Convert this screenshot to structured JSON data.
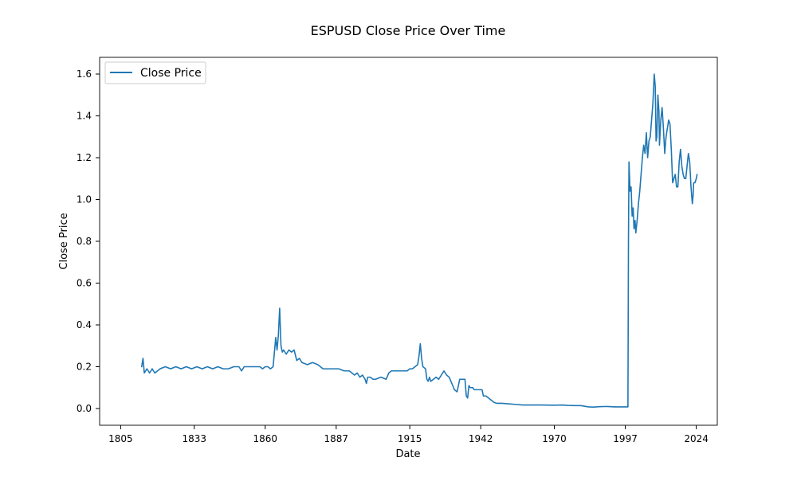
{
  "chart_data": {
    "type": "line",
    "title": "ESPUSD Close Price Over Time",
    "xlabel": "Date",
    "ylabel": "Close Price",
    "xlim": [
      1797,
      2032
    ],
    "ylim": [
      -0.08,
      1.68
    ],
    "x_ticks": [
      {
        "value": 1805,
        "label": "1805"
      },
      {
        "value": 1833,
        "label": "1833"
      },
      {
        "value": 1860,
        "label": "1860"
      },
      {
        "value": 1887,
        "label": "1887"
      },
      {
        "value": 1915,
        "label": "1915"
      },
      {
        "value": 1942,
        "label": "1942"
      },
      {
        "value": 1970,
        "label": "1970"
      },
      {
        "value": 1997,
        "label": "1997"
      },
      {
        "value": 2024,
        "label": "2024"
      }
    ],
    "y_ticks": [
      {
        "value": 0.0,
        "label": "0.0"
      },
      {
        "value": 0.2,
        "label": "0.2"
      },
      {
        "value": 0.4,
        "label": "0.4"
      },
      {
        "value": 0.6,
        "label": "0.6"
      },
      {
        "value": 0.8,
        "label": "0.8"
      },
      {
        "value": 1.0,
        "label": "1.0"
      },
      {
        "value": 1.2,
        "label": "1.2"
      },
      {
        "value": 1.4,
        "label": "1.4"
      },
      {
        "value": 1.6,
        "label": "1.6"
      }
    ],
    "grid": false,
    "legend_position": "upper-left",
    "series": [
      {
        "name": "Close Price",
        "color": "#1f77b4",
        "points": [
          [
            1813,
            0.2
          ],
          [
            1813.5,
            0.24
          ],
          [
            1814,
            0.17
          ],
          [
            1815,
            0.19
          ],
          [
            1816,
            0.17
          ],
          [
            1817,
            0.19
          ],
          [
            1818,
            0.17
          ],
          [
            1820,
            0.19
          ],
          [
            1822,
            0.2
          ],
          [
            1824,
            0.19
          ],
          [
            1826,
            0.2
          ],
          [
            1828,
            0.19
          ],
          [
            1830,
            0.2
          ],
          [
            1832,
            0.19
          ],
          [
            1834,
            0.2
          ],
          [
            1836,
            0.19
          ],
          [
            1838,
            0.2
          ],
          [
            1840,
            0.19
          ],
          [
            1842,
            0.2
          ],
          [
            1844,
            0.19
          ],
          [
            1846,
            0.19
          ],
          [
            1848,
            0.2
          ],
          [
            1850,
            0.2
          ],
          [
            1851,
            0.18
          ],
          [
            1852,
            0.2
          ],
          [
            1854,
            0.2
          ],
          [
            1856,
            0.2
          ],
          [
            1858,
            0.2
          ],
          [
            1859,
            0.19
          ],
          [
            1860,
            0.2
          ],
          [
            1861,
            0.2
          ],
          [
            1862,
            0.19
          ],
          [
            1863,
            0.2
          ],
          [
            1864,
            0.34
          ],
          [
            1864.5,
            0.28
          ],
          [
            1865,
            0.35
          ],
          [
            1865.5,
            0.48
          ],
          [
            1866,
            0.3
          ],
          [
            1866.5,
            0.27
          ],
          [
            1867,
            0.28
          ],
          [
            1868,
            0.26
          ],
          [
            1869,
            0.28
          ],
          [
            1870,
            0.27
          ],
          [
            1871,
            0.28
          ],
          [
            1872,
            0.23
          ],
          [
            1873,
            0.24
          ],
          [
            1874,
            0.22
          ],
          [
            1876,
            0.21
          ],
          [
            1878,
            0.22
          ],
          [
            1880,
            0.21
          ],
          [
            1882,
            0.19
          ],
          [
            1885,
            0.19
          ],
          [
            1888,
            0.19
          ],
          [
            1890,
            0.18
          ],
          [
            1892,
            0.18
          ],
          [
            1893,
            0.17
          ],
          [
            1894,
            0.16
          ],
          [
            1895,
            0.17
          ],
          [
            1896,
            0.15
          ],
          [
            1897,
            0.16
          ],
          [
            1898,
            0.14
          ],
          [
            1898.5,
            0.12
          ],
          [
            1899,
            0.15
          ],
          [
            1900,
            0.15
          ],
          [
            1901,
            0.14
          ],
          [
            1902,
            0.14
          ],
          [
            1904,
            0.15
          ],
          [
            1906,
            0.14
          ],
          [
            1907,
            0.17
          ],
          [
            1908,
            0.18
          ],
          [
            1910,
            0.18
          ],
          [
            1912,
            0.18
          ],
          [
            1914,
            0.18
          ],
          [
            1915,
            0.19
          ],
          [
            1916,
            0.19
          ],
          [
            1917,
            0.2
          ],
          [
            1918,
            0.21
          ],
          [
            1918.5,
            0.25
          ],
          [
            1919,
            0.31
          ],
          [
            1919.5,
            0.24
          ],
          [
            1920,
            0.2
          ],
          [
            1921,
            0.19
          ],
          [
            1921.5,
            0.14
          ],
          [
            1922,
            0.13
          ],
          [
            1922.5,
            0.15
          ],
          [
            1923,
            0.13
          ],
          [
            1924,
            0.14
          ],
          [
            1925,
            0.15
          ],
          [
            1926,
            0.14
          ],
          [
            1927,
            0.16
          ],
          [
            1928,
            0.18
          ],
          [
            1929,
            0.16
          ],
          [
            1930,
            0.15
          ],
          [
            1931,
            0.12
          ],
          [
            1932,
            0.09
          ],
          [
            1933,
            0.08
          ],
          [
            1933.5,
            0.11
          ],
          [
            1934,
            0.14
          ],
          [
            1935,
            0.14
          ],
          [
            1936,
            0.14
          ],
          [
            1936.5,
            0.06
          ],
          [
            1937,
            0.05
          ],
          [
            1937.5,
            0.11
          ],
          [
            1938,
            0.1
          ],
          [
            1939,
            0.1
          ],
          [
            1939.5,
            0.09
          ],
          [
            1941,
            0.09
          ],
          [
            1942,
            0.09
          ],
          [
            1942.5,
            0.09
          ],
          [
            1943,
            0.06
          ],
          [
            1944,
            0.06
          ],
          [
            1945,
            0.05
          ],
          [
            1946,
            0.04
          ],
          [
            1947,
            0.03
          ],
          [
            1948,
            0.025
          ],
          [
            1950,
            0.025
          ],
          [
            1952,
            0.023
          ],
          [
            1955,
            0.02
          ],
          [
            1958,
            0.017
          ],
          [
            1960,
            0.017
          ],
          [
            1965,
            0.017
          ],
          [
            1970,
            0.016
          ],
          [
            1973,
            0.017
          ],
          [
            1975,
            0.015
          ],
          [
            1978,
            0.014
          ],
          [
            1980,
            0.014
          ],
          [
            1983,
            0.008
          ],
          [
            1985,
            0.007
          ],
          [
            1987,
            0.009
          ],
          [
            1990,
            0.01
          ],
          [
            1993,
            0.008
          ],
          [
            1996,
            0.008
          ],
          [
            1998,
            0.008
          ],
          [
            1998.2,
            0.8
          ],
          [
            1998.4,
            1.18
          ],
          [
            1998.8,
            1.04
          ],
          [
            1999.2,
            1.06
          ],
          [
            1999.6,
            0.92
          ],
          [
            2000,
            0.96
          ],
          [
            2000.3,
            0.86
          ],
          [
            2000.7,
            0.9
          ],
          [
            2001,
            0.84
          ],
          [
            2001.5,
            0.9
          ],
          [
            2002,
            0.98
          ],
          [
            2002.5,
            1.04
          ],
          [
            2003,
            1.12
          ],
          [
            2003.5,
            1.2
          ],
          [
            2004,
            1.26
          ],
          [
            2004.5,
            1.22
          ],
          [
            2005,
            1.32
          ],
          [
            2005.5,
            1.2
          ],
          [
            2006,
            1.28
          ],
          [
            2006.5,
            1.3
          ],
          [
            2007,
            1.38
          ],
          [
            2007.5,
            1.46
          ],
          [
            2008,
            1.6
          ],
          [
            2008.4,
            1.54
          ],
          [
            2008.7,
            1.28
          ],
          [
            2009,
            1.3
          ],
          [
            2009.4,
            1.5
          ],
          [
            2009.8,
            1.42
          ],
          [
            2010,
            1.26
          ],
          [
            2010.5,
            1.38
          ],
          [
            2011,
            1.44
          ],
          [
            2011.5,
            1.34
          ],
          [
            2012,
            1.22
          ],
          [
            2012.5,
            1.3
          ],
          [
            2013,
            1.34
          ],
          [
            2013.5,
            1.38
          ],
          [
            2014,
            1.36
          ],
          [
            2014.5,
            1.24
          ],
          [
            2015,
            1.08
          ],
          [
            2015.5,
            1.1
          ],
          [
            2016,
            1.12
          ],
          [
            2016.5,
            1.06
          ],
          [
            2017,
            1.06
          ],
          [
            2017.5,
            1.18
          ],
          [
            2018,
            1.24
          ],
          [
            2018.5,
            1.16
          ],
          [
            2019,
            1.12
          ],
          [
            2019.5,
            1.1
          ],
          [
            2020,
            1.1
          ],
          [
            2020.5,
            1.16
          ],
          [
            2021,
            1.22
          ],
          [
            2021.5,
            1.18
          ],
          [
            2022,
            1.06
          ],
          [
            2022.5,
            0.98
          ],
          [
            2022.8,
            1.02
          ],
          [
            2023,
            1.08
          ],
          [
            2023.5,
            1.08
          ],
          [
            2024,
            1.1
          ],
          [
            2024.3,
            1.12
          ]
        ]
      }
    ]
  }
}
